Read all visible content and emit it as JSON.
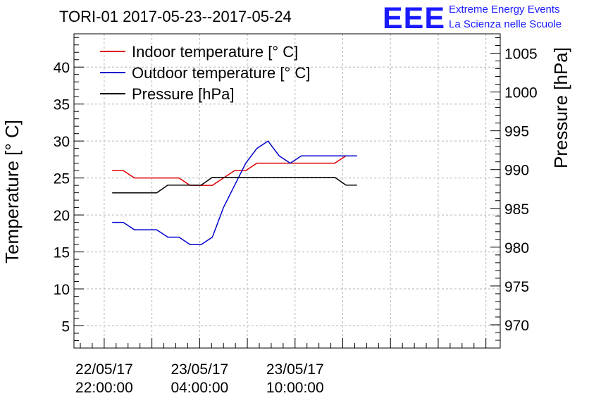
{
  "chart_data": {
    "type": "line",
    "title": "TORI-01 2017-05-23--2017-05-24",
    "ylabel": "Temperature [° C]",
    "y2label": "Pressure [hPa]",
    "xlabel": "",
    "ylim": [
      2,
      44.5
    ],
    "y2lim": [
      967,
      1007.5
    ],
    "x_range_hours": [
      -1.9,
      24.9
    ],
    "yticks": [
      5,
      10,
      15,
      20,
      25,
      30,
      35,
      40
    ],
    "y2ticks": [
      970,
      975,
      980,
      985,
      990,
      995,
      1000,
      1005
    ],
    "xticks": [
      {
        "at": 0,
        "date": "22/05/17",
        "time": "22:00:00"
      },
      {
        "at": 6,
        "date": "23/05/17",
        "time": "04:00:00"
      },
      {
        "at": 12,
        "date": "23/05/17",
        "time": "10:00:00"
      }
    ],
    "grid": true,
    "legend_position": "top-left",
    "x_hours": [
      0.5,
      1.2,
      1.9,
      2.6,
      3.3,
      4,
      4.7,
      5.4,
      6.1,
      6.8,
      7.5,
      8.2,
      8.9,
      9.6,
      10.3,
      11,
      11.7,
      12.4,
      13.1,
      13.8,
      14.5,
      15.2,
      15.9
    ],
    "series": [
      {
        "name": "Indoor temperature [° C]",
        "axis": "left",
        "color": "#dd0000",
        "values": [
          26,
          26,
          25,
          25,
          25,
          25,
          25,
          24,
          24,
          24,
          25,
          26,
          26,
          27,
          27,
          27,
          27,
          27,
          27,
          27,
          27,
          28,
          28
        ]
      },
      {
        "name": "Outdoor temperature [° C]",
        "axis": "left",
        "color": "#0000cc",
        "values": [
          19,
          19,
          18,
          18,
          18,
          17,
          17,
          16,
          16,
          17,
          21,
          24,
          27,
          29,
          30,
          28,
          27,
          28,
          28,
          28,
          28,
          28,
          28
        ]
      },
      {
        "name": "Pressure [hPa]",
        "axis": "right",
        "color": "#000000",
        "values": [
          987,
          987,
          987,
          987,
          987,
          988,
          988,
          988,
          988,
          989,
          989,
          989,
          989,
          989,
          989,
          989,
          989,
          989,
          989,
          989,
          989,
          988,
          988
        ]
      }
    ]
  },
  "logo": {
    "letters": "EEE",
    "line1": "Extreme Energy Events",
    "line2": "La Scienza nelle Scuole"
  }
}
